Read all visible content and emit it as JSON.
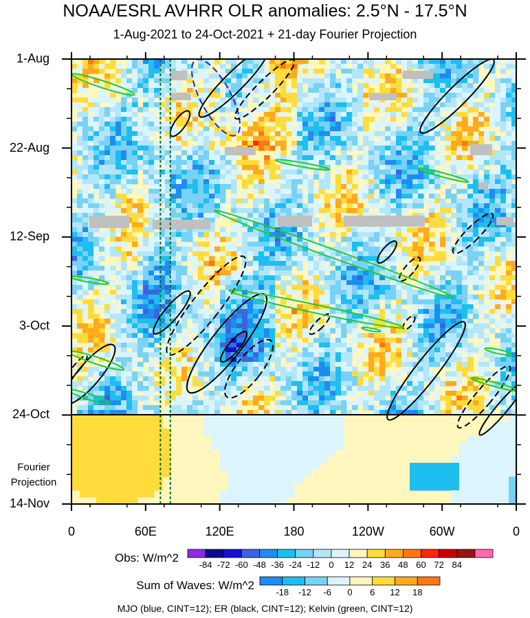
{
  "header": {
    "title": "NOAA/ESRL AVHRR OLR anomalies: 2.5°N - 17.5°N",
    "subtitle": "1-Aug-2021 to 24-Oct-2021 + 21-day Fourier Projection"
  },
  "chart_data": {
    "type": "heatmap",
    "title": "NOAA/ESRL AVHRR OLR anomalies: 2.5°N - 17.5°N",
    "subtitle": "1-Aug-2021 to 24-Oct-2021 + 21-day Fourier Projection",
    "x_axis": {
      "ticks": [
        "0",
        "60E",
        "120E",
        "180",
        "120W",
        "60W",
        "0"
      ],
      "range_deg_east": [
        0,
        360
      ]
    },
    "y_axis": {
      "ticks": [
        "1-Aug",
        "22-Aug",
        "12-Sep",
        "3-Oct",
        "24-Oct",
        "14-Nov"
      ],
      "range": [
        "2021-08-01",
        "2021-11-14"
      ],
      "observed_end": "2021-10-24"
    },
    "projection_label": "Fourier\nProjection",
    "reference_lines_deg_east": [
      72,
      80
    ],
    "obs_legend": {
      "label": "Obs: W/m^2",
      "levels": [
        "-84",
        "-72",
        "-60",
        "-48",
        "-36",
        "-24",
        "-12",
        "0",
        "12",
        "24",
        "36",
        "48",
        "60",
        "72",
        "84"
      ],
      "colors": [
        "#8b2be2",
        "#0a0a8c",
        "#1414cd",
        "#3c64dc",
        "#1e8cf0",
        "#1ebef0",
        "#78d2f5",
        "#b4e6fa",
        "#dcf5fc",
        "#fff7be",
        "#ffdc3c",
        "#ffaa1e",
        "#ff7814",
        "#ff280a",
        "#c80000",
        "#961414",
        "#ff69b4"
      ]
    },
    "waves_legend": {
      "label": "Sum of Waves: W/m^2",
      "levels": [
        "-18",
        "-12",
        "-6",
        "0",
        "6",
        "12",
        "18"
      ],
      "colors": [
        "#1e8cf0",
        "#1ebef0",
        "#78d2f5",
        "#dcf5fc",
        "#fff7be",
        "#ffdc3c",
        "#ffaa1e",
        "#ff7814"
      ]
    },
    "contours": [
      {
        "name": "MJO",
        "color": "#1428d2"
      },
      {
        "name": "ER",
        "color": "#000000"
      },
      {
        "name": "Kelvin",
        "color": "#28c828"
      }
    ],
    "footer": "MJO (blue, CINT=12); ER (black, CINT=12); Kelvin (green, CINT=12)"
  }
}
